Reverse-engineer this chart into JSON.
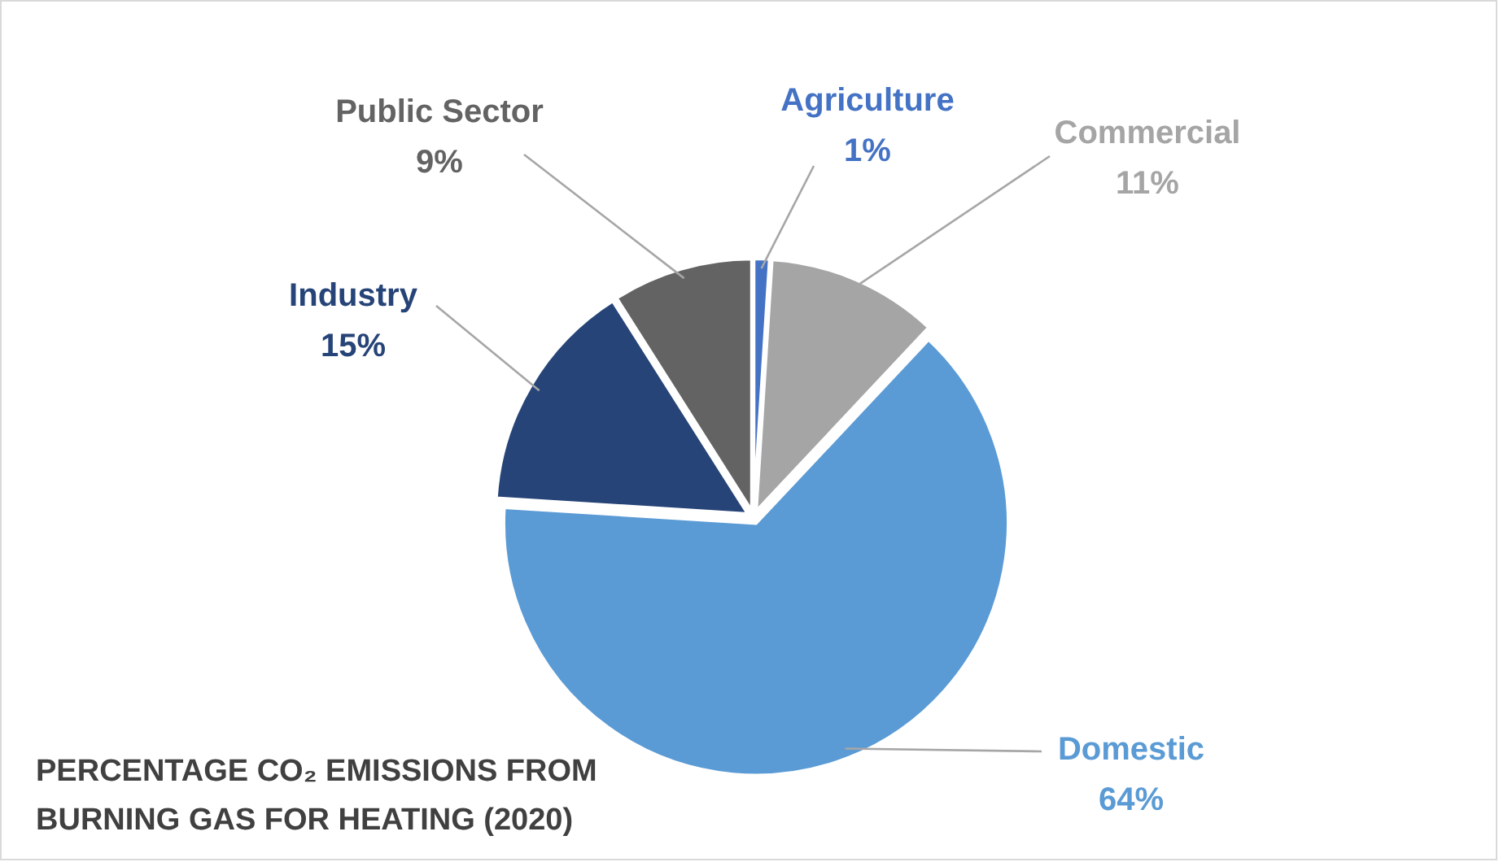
{
  "chart_data": {
    "type": "pie",
    "title": "PERCENTAGE CO₂ EMISSIONS FROM BURNING GAS FOR HEATING (2020)",
    "categories": [
      "Agriculture",
      "Commercial",
      "Domestic",
      "Industry",
      "Public Sector"
    ],
    "values": [
      1,
      11,
      64,
      15,
      9
    ],
    "value_labels": [
      "1%",
      "11%",
      "64%",
      "15%",
      "9%"
    ],
    "colors": [
      "#4472c4",
      "#a5a5a5",
      "#5b9bd5",
      "#264478",
      "#636363"
    ]
  }
}
